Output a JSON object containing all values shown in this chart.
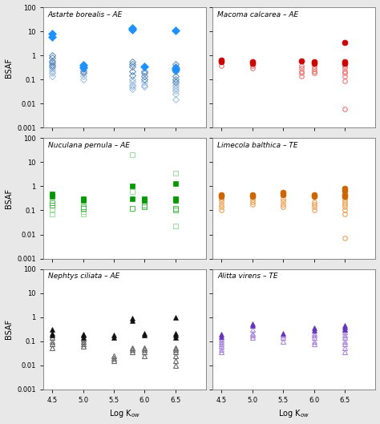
{
  "panels": [
    {
      "title": "Astarte borealis – AE",
      "color_filled": "#1E90FF",
      "color_open_dark": "#5588BB",
      "color_open_light": "#99BBDD",
      "marker": "D",
      "row": 0,
      "col": 0,
      "filled_data": [
        [
          4.5,
          8.0
        ],
        [
          4.5,
          6.0
        ],
        [
          5.0,
          0.4
        ],
        [
          5.0,
          0.32
        ],
        [
          5.8,
          14.0
        ],
        [
          5.8,
          12.0
        ],
        [
          6.0,
          0.35
        ],
        [
          6.5,
          11.0
        ],
        [
          6.5,
          0.3
        ],
        [
          6.5,
          0.25
        ]
      ],
      "open_dark_data": [
        [
          4.5,
          1.0
        ],
        [
          4.5,
          0.8
        ],
        [
          4.5,
          0.6
        ],
        [
          4.5,
          0.5
        ],
        [
          4.5,
          0.4
        ],
        [
          4.5,
          0.35
        ],
        [
          5.0,
          0.35
        ],
        [
          5.0,
          0.28
        ],
        [
          5.0,
          0.22
        ],
        [
          5.0,
          0.18
        ],
        [
          5.8,
          0.55
        ],
        [
          5.8,
          0.45
        ],
        [
          5.8,
          0.35
        ],
        [
          5.8,
          0.22
        ],
        [
          5.8,
          0.15
        ],
        [
          6.0,
          0.22
        ],
        [
          6.0,
          0.18
        ],
        [
          6.0,
          0.14
        ],
        [
          6.0,
          0.1
        ],
        [
          6.5,
          0.45
        ],
        [
          6.5,
          0.35
        ],
        [
          6.5,
          0.22
        ],
        [
          6.5,
          0.14
        ],
        [
          6.5,
          0.1
        ],
        [
          6.5,
          0.08
        ]
      ],
      "open_light_data": [
        [
          4.5,
          0.28
        ],
        [
          4.5,
          0.22
        ],
        [
          4.5,
          0.18
        ],
        [
          4.5,
          0.14
        ],
        [
          5.0,
          0.14
        ],
        [
          5.0,
          0.1
        ],
        [
          5.8,
          0.1
        ],
        [
          5.8,
          0.08
        ],
        [
          5.8,
          0.06
        ],
        [
          5.8,
          0.05
        ],
        [
          5.8,
          0.04
        ],
        [
          6.0,
          0.08
        ],
        [
          6.0,
          0.06
        ],
        [
          6.0,
          0.05
        ],
        [
          6.5,
          0.07
        ],
        [
          6.5,
          0.055
        ],
        [
          6.5,
          0.045
        ],
        [
          6.5,
          0.035
        ],
        [
          6.5,
          0.025
        ],
        [
          6.5,
          0.015
        ]
      ]
    },
    {
      "title": "Macoma calcarea – AE",
      "color_filled": "#CC0000",
      "color_open": "#EE7777",
      "marker": "o",
      "row": 0,
      "col": 1,
      "filled_data": [
        [
          4.5,
          0.65
        ],
        [
          4.5,
          0.55
        ],
        [
          5.0,
          0.55
        ],
        [
          5.0,
          0.48
        ],
        [
          5.8,
          0.6
        ],
        [
          6.0,
          0.55
        ],
        [
          6.0,
          0.48
        ],
        [
          6.5,
          3.5
        ],
        [
          6.5,
          0.55
        ],
        [
          6.5,
          0.48
        ]
      ],
      "open_data": [
        [
          4.5,
          0.38
        ],
        [
          5.0,
          0.38
        ],
        [
          5.0,
          0.3
        ],
        [
          5.8,
          0.38
        ],
        [
          5.8,
          0.3
        ],
        [
          5.8,
          0.22
        ],
        [
          5.8,
          0.18
        ],
        [
          5.8,
          0.14
        ],
        [
          6.0,
          0.35
        ],
        [
          6.0,
          0.28
        ],
        [
          6.0,
          0.22
        ],
        [
          6.0,
          0.18
        ],
        [
          6.5,
          0.38
        ],
        [
          6.5,
          0.3
        ],
        [
          6.5,
          0.22
        ],
        [
          6.5,
          0.18
        ],
        [
          6.5,
          0.14
        ],
        [
          6.5,
          0.09
        ],
        [
          6.5,
          0.006
        ]
      ]
    },
    {
      "title": "Nuculana pernula – AE",
      "color_filled": "#009900",
      "color_open_dark": "#44BB44",
      "color_open_light": "#99DD99",
      "marker": "s",
      "row": 1,
      "col": 0,
      "filled_data": [
        [
          4.5,
          0.48
        ],
        [
          4.5,
          0.38
        ],
        [
          5.0,
          0.3
        ],
        [
          5.0,
          0.26
        ],
        [
          5.8,
          1.0
        ],
        [
          5.8,
          0.3
        ],
        [
          6.0,
          0.3
        ],
        [
          6.0,
          0.26
        ],
        [
          6.5,
          1.3
        ],
        [
          6.5,
          0.3
        ],
        [
          6.5,
          0.26
        ]
      ],
      "open_dark_data": [
        [
          4.5,
          0.2
        ],
        [
          4.5,
          0.16
        ],
        [
          5.0,
          0.14
        ],
        [
          5.0,
          0.12
        ],
        [
          5.8,
          0.12
        ],
        [
          6.0,
          0.16
        ],
        [
          6.0,
          0.14
        ],
        [
          6.5,
          0.12
        ],
        [
          6.5,
          0.1
        ]
      ],
      "open_light_data": [
        [
          4.5,
          0.1
        ],
        [
          4.5,
          0.07
        ],
        [
          5.0,
          0.09
        ],
        [
          5.0,
          0.07
        ],
        [
          5.8,
          20.0
        ],
        [
          5.8,
          0.6
        ],
        [
          6.5,
          3.5
        ],
        [
          6.5,
          0.3
        ],
        [
          6.5,
          0.022
        ]
      ]
    },
    {
      "title": "Limecola balthica – TE",
      "color_filled": "#CC6600",
      "color_open": "#EEA055",
      "marker": "o",
      "row": 1,
      "col": 1,
      "filled_data": [
        [
          4.5,
          0.45
        ],
        [
          4.5,
          0.38
        ],
        [
          5.0,
          0.45
        ],
        [
          5.0,
          0.38
        ],
        [
          5.5,
          0.55
        ],
        [
          5.5,
          0.45
        ],
        [
          6.0,
          0.45
        ],
        [
          6.0,
          0.38
        ],
        [
          6.5,
          0.8
        ],
        [
          6.5,
          0.65
        ],
        [
          6.5,
          0.45
        ],
        [
          6.5,
          0.38
        ]
      ],
      "open_data": [
        [
          4.5,
          0.3
        ],
        [
          4.5,
          0.24
        ],
        [
          4.5,
          0.18
        ],
        [
          4.5,
          0.14
        ],
        [
          4.5,
          0.1
        ],
        [
          5.0,
          0.28
        ],
        [
          5.0,
          0.22
        ],
        [
          5.0,
          0.18
        ],
        [
          5.5,
          0.3
        ],
        [
          5.5,
          0.24
        ],
        [
          5.5,
          0.18
        ],
        [
          5.5,
          0.14
        ],
        [
          6.0,
          0.22
        ],
        [
          6.0,
          0.18
        ],
        [
          6.0,
          0.14
        ],
        [
          6.0,
          0.1
        ],
        [
          6.5,
          0.35
        ],
        [
          6.5,
          0.28
        ],
        [
          6.5,
          0.22
        ],
        [
          6.5,
          0.18
        ],
        [
          6.5,
          0.14
        ],
        [
          6.5,
          0.1
        ],
        [
          6.5,
          0.07
        ],
        [
          6.5,
          0.007
        ]
      ]
    },
    {
      "title": "Nephtys ciliata – AE",
      "color_filled": "#111111",
      "color_open": "#666666",
      "marker": "^",
      "row": 2,
      "col": 0,
      "filled_data": [
        [
          4.5,
          0.3
        ],
        [
          4.5,
          0.22
        ],
        [
          4.5,
          0.18
        ],
        [
          5.0,
          0.2
        ],
        [
          5.0,
          0.18
        ],
        [
          5.0,
          0.15
        ],
        [
          5.5,
          0.18
        ],
        [
          5.5,
          0.15
        ],
        [
          5.8,
          0.9
        ],
        [
          5.8,
          0.7
        ],
        [
          6.0,
          0.22
        ],
        [
          6.0,
          0.18
        ],
        [
          6.5,
          1.0
        ],
        [
          6.5,
          0.22
        ],
        [
          6.5,
          0.18
        ],
        [
          6.5,
          0.15
        ]
      ],
      "open_data": [
        [
          4.5,
          0.14
        ],
        [
          4.5,
          0.1
        ],
        [
          4.5,
          0.08
        ],
        [
          4.5,
          0.055
        ],
        [
          5.0,
          0.12
        ],
        [
          5.0,
          0.1
        ],
        [
          5.0,
          0.08
        ],
        [
          5.0,
          0.06
        ],
        [
          5.5,
          0.025
        ],
        [
          5.5,
          0.02
        ],
        [
          5.5,
          0.016
        ],
        [
          5.8,
          0.055
        ],
        [
          5.8,
          0.045
        ],
        [
          5.8,
          0.035
        ],
        [
          6.0,
          0.055
        ],
        [
          6.0,
          0.045
        ],
        [
          6.0,
          0.035
        ],
        [
          6.0,
          0.025
        ],
        [
          6.5,
          0.055
        ],
        [
          6.5,
          0.045
        ],
        [
          6.5,
          0.035
        ],
        [
          6.5,
          0.025
        ],
        [
          6.5,
          0.016
        ],
        [
          6.5,
          0.01
        ]
      ]
    },
    {
      "title": "Alitta virens – TE",
      "color_filled": "#6633BB",
      "color_open": "#AA88DD",
      "marker": "^",
      "row": 2,
      "col": 1,
      "filled_data": [
        [
          4.5,
          0.2
        ],
        [
          4.5,
          0.16
        ],
        [
          5.0,
          0.55
        ],
        [
          5.0,
          0.45
        ],
        [
          5.5,
          0.22
        ],
        [
          6.0,
          0.35
        ],
        [
          6.0,
          0.28
        ],
        [
          6.5,
          0.45
        ],
        [
          6.5,
          0.38
        ],
        [
          6.5,
          0.3
        ]
      ],
      "open_data": [
        [
          4.5,
          0.12
        ],
        [
          4.5,
          0.1
        ],
        [
          4.5,
          0.08
        ],
        [
          4.5,
          0.06
        ],
        [
          4.5,
          0.045
        ],
        [
          4.5,
          0.035
        ],
        [
          5.0,
          0.3
        ],
        [
          5.0,
          0.22
        ],
        [
          5.0,
          0.18
        ],
        [
          5.0,
          0.14
        ],
        [
          5.5,
          0.18
        ],
        [
          5.5,
          0.14
        ],
        [
          5.5,
          0.1
        ],
        [
          6.0,
          0.22
        ],
        [
          6.0,
          0.18
        ],
        [
          6.0,
          0.14
        ],
        [
          6.0,
          0.1
        ],
        [
          6.0,
          0.08
        ],
        [
          6.5,
          0.3
        ],
        [
          6.5,
          0.24
        ],
        [
          6.5,
          0.18
        ],
        [
          6.5,
          0.14
        ],
        [
          6.5,
          0.1
        ],
        [
          6.5,
          0.08
        ],
        [
          6.5,
          0.055
        ],
        [
          6.5,
          0.035
        ]
      ]
    }
  ],
  "xlim": [
    4.35,
    7.0
  ],
  "ylim": [
    0.001,
    100
  ],
  "yticks": [
    0.001,
    0.01,
    0.1,
    1,
    10,
    100
  ],
  "ytick_labels": [
    "0.001",
    "0.01",
    "0.1",
    "1",
    "10",
    "100"
  ],
  "xticks": [
    4.5,
    5.0,
    5.5,
    6.0,
    6.5
  ],
  "xtick_labels": [
    "4.5",
    "5.0",
    "5.5",
    "6.0",
    "6.5"
  ],
  "xlabel_left": "Log K$_{ow}$",
  "xlabel_right": "Log K$_{ow}$",
  "ylabel": "BSAF",
  "bg_color": "#e8e8e8",
  "panel_bg": "#ffffff",
  "ms_filled": 5,
  "ms_open": 4,
  "title_fontsize": 6.5,
  "axis_fontsize": 7,
  "tick_fontsize": 6
}
